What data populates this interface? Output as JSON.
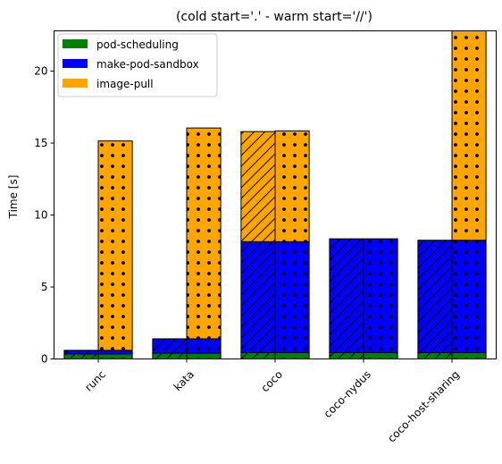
{
  "chart_data": {
    "type": "bar",
    "subtype": "stacked-paired",
    "title": "(cold start='.' - warm start='//')",
    "xlabel": "",
    "ylabel": "Time [s]",
    "ylim": [
      0,
      22.8
    ],
    "yticks": [
      0,
      5,
      10,
      15,
      20
    ],
    "categories": [
      "runc",
      "kata",
      "coco",
      "coco-nydus",
      "coco-host-sharing"
    ],
    "bar_variants": [
      {
        "name": "warm start",
        "hatch": "//"
      },
      {
        "name": "cold start",
        "hatch": "."
      }
    ],
    "series": [
      {
        "name": "pod-scheduling",
        "color": "#008000",
        "warm": [
          0.35,
          0.4,
          0.45,
          0.45,
          0.45
        ],
        "cold": [
          0.35,
          0.4,
          0.45,
          0.45,
          0.45
        ]
      },
      {
        "name": "make-pod-sandbox",
        "color": "#0000ff",
        "warm": [
          0.25,
          1.0,
          7.7,
          7.9,
          7.8
        ],
        "cold": [
          0.25,
          1.0,
          7.7,
          7.9,
          7.8
        ]
      },
      {
        "name": "image-pull",
        "color": "#ffa500",
        "warm": [
          0.0,
          0.0,
          7.65,
          0.0,
          0.0
        ],
        "cold": [
          14.55,
          14.65,
          7.7,
          0.0,
          14.6
        ]
      }
    ],
    "legend_position": "top-left",
    "grid": false
  }
}
